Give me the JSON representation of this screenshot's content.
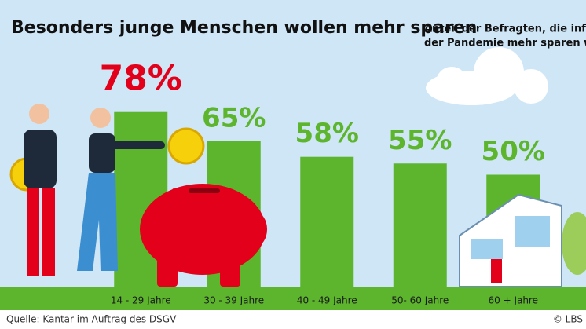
{
  "chart_data": {
    "type": "bar",
    "title": "Besonders junge Menschen wollen mehr sparen",
    "subtitle": [
      "Anteil der Befragten, die infolg",
      "der Pandemie mehr sparen wo"
    ],
    "categories": [
      "14 - 29 Jahre",
      "30 - 39 Jahre",
      "40 - 49 Jahre",
      "50- 60 Jahre",
      "60 + Jahre"
    ],
    "values": [
      78,
      65,
      58,
      55,
      50
    ],
    "value_labels": [
      "78%",
      "65%",
      "58%",
      "55%",
      "50%"
    ],
    "value_label_colors": [
      "#e2001a",
      "#5db52e",
      "#5db52e",
      "#5db52e",
      "#5db52e"
    ],
    "color": "#5db52e",
    "source": "Quelle: Kantar im Auftrag des DSGV",
    "copyright": "© LBS"
  }
}
